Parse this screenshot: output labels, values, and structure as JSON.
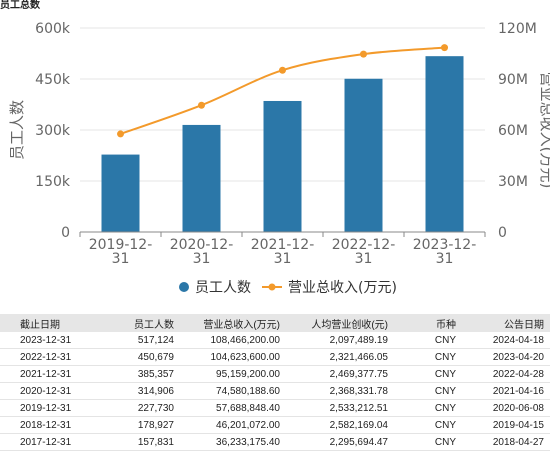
{
  "chart_title": "员工总数",
  "chart_data": {
    "type": "bar",
    "categories": [
      "2019-12-31",
      "2020-12-31",
      "2021-12-31",
      "2022-12-31",
      "2023-12-31"
    ],
    "series": [
      {
        "name": "员工人数",
        "type": "bar",
        "axis": "left",
        "color": "#2b77a8",
        "values": [
          227730,
          314906,
          385357,
          450679,
          517124
        ]
      },
      {
        "name": "营业总收入(万元)",
        "type": "line",
        "axis": "right",
        "color": "#f39a2b",
        "values": [
          57688848.4,
          74580188.6,
          95159200.0,
          104623600.0,
          108466200.0
        ]
      }
    ],
    "ylabel_left": "员工人数",
    "ylabel_right": "营业总收入(万元)",
    "left_axis": {
      "min": 0,
      "max": 600000,
      "ticks": [
        "0",
        "150k",
        "300k",
        "450k",
        "600k"
      ]
    },
    "right_axis": {
      "min": 0,
      "max": 120000000,
      "ticks": [
        "0",
        "30M",
        "60M",
        "90M",
        "120M"
      ]
    },
    "grid": true,
    "legend": "bottom-center"
  },
  "table": {
    "headers": [
      "截止日期",
      "员工人数",
      "营业总收入(万元)",
      "人均营业创收(元)",
      "币种",
      "公告日期"
    ],
    "rows": [
      [
        "2023-12-31",
        "517,124",
        "108,466,200.00",
        "2,097,489.19",
        "CNY",
        "2024-04-18"
      ],
      [
        "2022-12-31",
        "450,679",
        "104,623,600.00",
        "2,321,466.05",
        "CNY",
        "2023-04-20"
      ],
      [
        "2021-12-31",
        "385,357",
        "95,159,200.00",
        "2,469,377.75",
        "CNY",
        "2022-04-28"
      ],
      [
        "2020-12-31",
        "314,906",
        "74,580,188.60",
        "2,368,331.78",
        "CNY",
        "2021-04-16"
      ],
      [
        "2019-12-31",
        "227,730",
        "57,688,848.40",
        "2,533,212.51",
        "CNY",
        "2020-06-08"
      ],
      [
        "2018-12-31",
        "178,927",
        "46,201,072.00",
        "2,582,169.04",
        "CNY",
        "2019-04-15"
      ],
      [
        "2017-12-31",
        "157,831",
        "36,233,175.40",
        "2,295,694.47",
        "CNY",
        "2018-04-27"
      ]
    ]
  }
}
